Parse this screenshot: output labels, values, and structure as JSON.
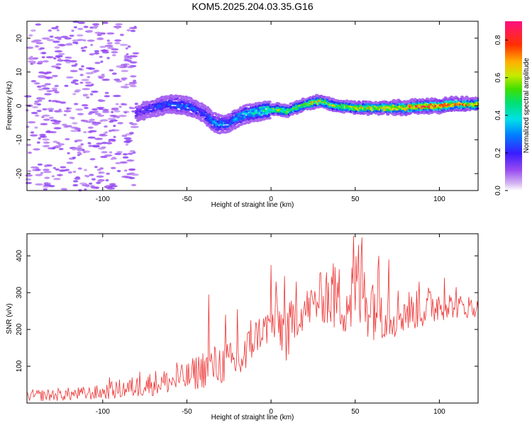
{
  "title": "KOM5.2025.204.03.35.G16",
  "chart_data": [
    {
      "type": "heatmap",
      "xlabel": "Height of straight line (km)",
      "ylabel": "Frequency (Hz)",
      "xlim": [
        -145,
        123
      ],
      "ylim": [
        -25,
        25
      ],
      "xticks": [
        -100,
        -50,
        0,
        50,
        100
      ],
      "xtick_labels": [
        "-100",
        "-50",
        "0",
        "50",
        "100"
      ],
      "yticks": [
        -20,
        -10,
        0,
        10,
        20
      ],
      "ytick_labels": [
        "-20",
        "-10",
        "0",
        "10",
        "20"
      ],
      "colorbar": {
        "label": "Normalized spectral amplitude",
        "range": [
          0,
          0.9
        ],
        "ticks": [
          0.0,
          0.2,
          0.4,
          0.6,
          0.8
        ],
        "tick_labels": [
          "0.0",
          "0.2",
          "0.4",
          "0.6",
          "0.8"
        ],
        "colormap": "rainbow (purple-blue-cyan-green-yellow-orange-red-pink)"
      },
      "ridge": {
        "x": [
          -80,
          -70,
          -60,
          -50,
          -40,
          -35,
          -30,
          -25,
          -20,
          -15,
          -10,
          -5,
          0,
          5,
          10,
          15,
          20,
          25,
          30,
          35,
          40,
          50,
          60,
          70,
          80,
          90,
          100,
          110,
          120
        ],
        "frequency": [
          -2,
          -0.5,
          0.5,
          0,
          -2,
          -4.5,
          -5.5,
          -5,
          -3.5,
          -2.5,
          -2,
          -1.5,
          -1,
          -1,
          -1.5,
          -0.5,
          0.5,
          1,
          1.5,
          0.5,
          0,
          -0.5,
          -0.5,
          -0.5,
          -0.5,
          0,
          0,
          0.5,
          0.5
        ],
        "amplitude": [
          0.15,
          0.2,
          0.25,
          0.25,
          0.2,
          0.3,
          0.3,
          0.25,
          0.3,
          0.35,
          0.35,
          0.45,
          0.45,
          0.55,
          0.5,
          0.5,
          0.5,
          0.6,
          0.6,
          0.5,
          0.55,
          0.6,
          0.6,
          0.65,
          0.7,
          0.75,
          0.8,
          0.7,
          0.6
        ]
      },
      "noise_region_x": [
        -145,
        -80
      ],
      "noise_amplitude": 0.05,
      "grid": false
    },
    {
      "type": "line",
      "xlabel": "Height of straight line (km)",
      "ylabel": "SNR (v/v)",
      "xlim": [
        -145,
        123
      ],
      "ylim": [
        0,
        460
      ],
      "xticks": [
        -100,
        -50,
        0,
        50,
        100
      ],
      "xtick_labels": [
        "-100",
        "-50",
        "0",
        "50",
        "100"
      ],
      "yticks": [
        100,
        200,
        300,
        400
      ],
      "ytick_labels": [
        "100",
        "200",
        "300",
        "400"
      ],
      "color": "#ee3333",
      "series": [
        {
          "envelope_x": [
            -145,
            -130,
            -110,
            -100,
            -90,
            -80,
            -70,
            -60,
            -50,
            -40,
            -30,
            -20,
            -15,
            -10,
            -5,
            0,
            5,
            10,
            15,
            20,
            25,
            30,
            35,
            40,
            45,
            50,
            55,
            60,
            65,
            70,
            75,
            80,
            85,
            90,
            95,
            100,
            105,
            110,
            115,
            120,
            123
          ],
          "envelope_low": [
            5,
            5,
            8,
            10,
            12,
            15,
            20,
            25,
            30,
            40,
            50,
            55,
            60,
            130,
            150,
            160,
            140,
            100,
            180,
            200,
            210,
            220,
            200,
            190,
            180,
            170,
            180,
            170,
            175,
            170,
            180,
            190,
            200,
            200,
            210,
            220,
            230,
            230,
            230,
            230,
            240
          ],
          "envelope_high": [
            35,
            40,
            45,
            50,
            65,
            75,
            90,
            95,
            110,
            150,
            165,
            170,
            200,
            230,
            250,
            270,
            290,
            270,
            300,
            310,
            330,
            360,
            370,
            380,
            390,
            420,
            430,
            400,
            370,
            340,
            320,
            320,
            300,
            320,
            320,
            330,
            310,
            290,
            300,
            290,
            280
          ],
          "spikes": [
            [
              -96,
              70
            ],
            [
              -78,
              85
            ],
            [
              -56,
              110
            ],
            [
              -37,
              295
            ],
            [
              -27,
              240
            ],
            [
              -20,
              255
            ],
            [
              -12,
              225
            ],
            [
              0,
              375
            ],
            [
              3,
              330
            ],
            [
              8,
              345
            ],
            [
              15,
              330
            ],
            [
              33,
              355
            ],
            [
              37,
              380
            ],
            [
              49,
              455
            ],
            [
              52,
              430
            ],
            [
              54,
              450
            ],
            [
              64,
              400
            ],
            [
              70,
              390
            ],
            [
              88,
              330
            ],
            [
              103,
              340
            ],
            [
              110,
              315
            ]
          ]
        }
      ],
      "grid": false
    }
  ]
}
